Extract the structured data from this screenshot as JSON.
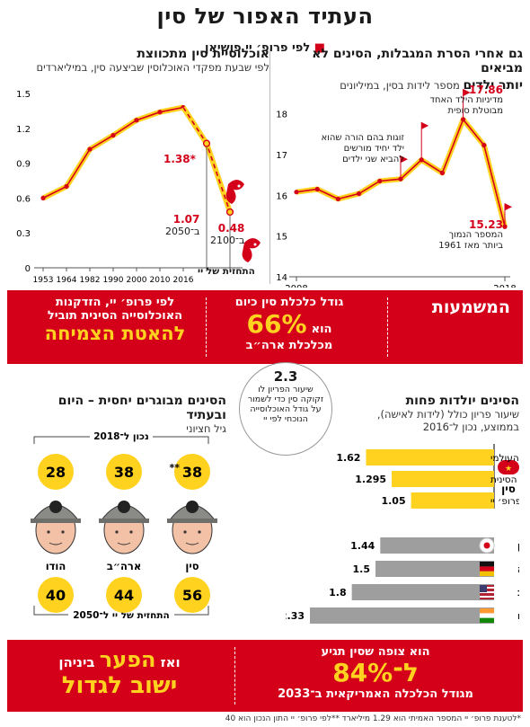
{
  "title": "העתיד האפור של סין",
  "byline": {
    "prefix": "לפי פרופ׳ יי פושיאן",
    "sep": "■"
  },
  "births_chart": {
    "title_line1": "גם אחרי הסרת המגבלות, הסינים לא מביאים",
    "title_line2_bold": "יותר ילדים",
    "title_line2_rest": " מספר לידות בסין, במיליונים",
    "annotations": {
      "peak_value": "17.86",
      "peak_text_1": "מדיניות הילד האחד",
      "peak_text_2": "מבוטלת סופית",
      "mid_text_1": "זוגות בהם הורה שהוא",
      "mid_text_2": "ילד יחיד מורשים",
      "mid_text_3": "להביא שני ילדים",
      "low_value": "15.23",
      "low_text_1": "המספר הנמוך",
      "low_text_2": "ביותר מאז 1961"
    }
  },
  "pop_chart": {
    "title": "אוכלוסיית סין מתכווצת",
    "subtitle": "לפי שבעת מפקדי האוכלוסין שביצעה סין, במיליארדים",
    "forecast_label": "התחזית של יי",
    "annotations": {
      "peak_value": "*1.38",
      "y2050_value": "1.07",
      "y2050_label": "ב־2050",
      "y2100_value": "0.48",
      "y2100_label": "ב־2100"
    }
  },
  "meaning": {
    "label": "המשמעות",
    "box1_line1": "גודל כלכלת סין כיום",
    "box1_pre": "הוא",
    "box1_big": "66%",
    "box1_line3": "מכלכלת ארה״ב",
    "box2_line1": "לפי פרופ׳ יי, הזדקנות",
    "box2_line2": "האוכלוסייה הסינית תוביל",
    "box2_big": "להאטת הצמיחה"
  },
  "circle_note": {
    "value": "2.3",
    "text": "שיעור הפריון לו זקוקה סין כדי לשמור על גודל האוכלוסייה הנוכחי לפי יי"
  },
  "fertility": {
    "title": "הסינים יולדות פחות",
    "subtitle_1": "שיעור פריון כולל (לידות לאישה),",
    "subtitle_2": "בממוצע, נכון ל־2016",
    "china_label": "סין",
    "china_rows": [
      {
        "label": "לפי הבנק העולמי",
        "value": "1.62"
      },
      {
        "label": "לפי הלמ״ס הסינית",
        "value": "1.295"
      },
      {
        "label": "לפי פרופ׳ יי",
        "value": "1.05"
      }
    ],
    "countries": [
      {
        "name": "יפן",
        "value": "1.44"
      },
      {
        "name": "גרמניה",
        "value": "1.5"
      },
      {
        "name": "ארה״ב",
        "value": "1.8"
      },
      {
        "name": "הודו",
        "value": "2.33"
      }
    ]
  },
  "adults": {
    "title": "הסינים מבוגרים יחסית – היום ובעתיד",
    "subtitle": "גיל חציוני",
    "now_label": "נכון ל־2018",
    "future_label": "התחזית של יי ל־2050",
    "columns": [
      {
        "name": "סין",
        "now": "38",
        "now_mark": "**",
        "future": "56"
      },
      {
        "name": "ארה״ב",
        "now": "38",
        "now_mark": "",
        "future": "44"
      },
      {
        "name": "הודו",
        "now": "28",
        "now_mark": "",
        "future": "40"
      }
    ]
  },
  "bottom": {
    "right_line1": "הוא צופה שסין תגיע",
    "right_big": "ל־84%",
    "right_line3": "מגודל הכלכלה האמריקאית ב־2033",
    "left_pre": "ואז",
    "left_big": "הפער",
    "left_post": " ביניהן",
    "left_big2": "ישוב לגדול"
  },
  "footnote": "*לטענת פרופ׳ יי המספר האמיתי הוא 1.29 מיליארד  **לפי פרופ׳ יי התון הנכון הוא 40",
  "colors": {
    "red": "#d4001a",
    "yellow": "#ffd21f",
    "grey": "#9e9e9e",
    "orange": "#f2a900"
  },
  "chart_data": [
    {
      "type": "line",
      "title": "גם אחרי הסרת המגבלות, הסינים לא מביאים יותר ילדים",
      "ylabel": "מספר לידות בסין, במיליונים",
      "x": [
        2008,
        2009,
        2010,
        2011,
        2012,
        2013,
        2014,
        2015,
        2016,
        2017,
        2018
      ],
      "x_ticks": [
        "2008",
        "2018"
      ],
      "values": [
        16.08,
        16.15,
        15.91,
        16.04,
        16.35,
        16.4,
        16.87,
        16.55,
        17.86,
        17.23,
        15.23
      ],
      "ylim": [
        14,
        18.5
      ],
      "y_ticks": [
        14,
        15,
        16,
        17,
        18
      ],
      "grid": false
    },
    {
      "type": "line",
      "title": "אוכלוסיית סין מתכווצת",
      "ylabel": "לפי שבעת מפקדי האוכלוסין שביצעה סין, במיליארדים",
      "categories": [
        "1953",
        "1964",
        "1982",
        "1990",
        "2000",
        "2010",
        "2016",
        "2050",
        "2100"
      ],
      "series": [
        {
          "name": "",
          "values": [
            0.6,
            0.7,
            1.02,
            1.14,
            1.27,
            1.34,
            1.38,
            null,
            null
          ]
        },
        {
          "name": "התחזית של יי",
          "values": [
            null,
            null,
            null,
            null,
            null,
            null,
            1.38,
            1.07,
            0.48
          ]
        }
      ],
      "ylim": [
        0,
        1.5
      ],
      "y_ticks": [
        0,
        0.3,
        0.6,
        0.9,
        1.2,
        1.5
      ],
      "grid": false
    },
    {
      "type": "bar",
      "title": "הסינים יולדות פחות",
      "categories": [
        "לפי הבנק העולמי",
        "לפי הלמ״ס הסינית",
        "לפי פרופ׳ יי",
        "יפן",
        "גרמניה",
        "ארה״ב",
        "הודו"
      ],
      "values": [
        1.62,
        1.295,
        1.05,
        1.44,
        1.5,
        1.8,
        2.33
      ]
    },
    {
      "type": "table",
      "title": "הסינים מבוגרים יחסית – היום ובעתיד",
      "categories": [
        "סין",
        "ארה״ב",
        "הודו"
      ],
      "series": [
        {
          "name": "נכון ל־2018",
          "values": [
            38,
            38,
            28
          ]
        },
        {
          "name": "התחזית של יי ל־2050",
          "values": [
            56,
            44,
            40
          ]
        }
      ]
    }
  ]
}
